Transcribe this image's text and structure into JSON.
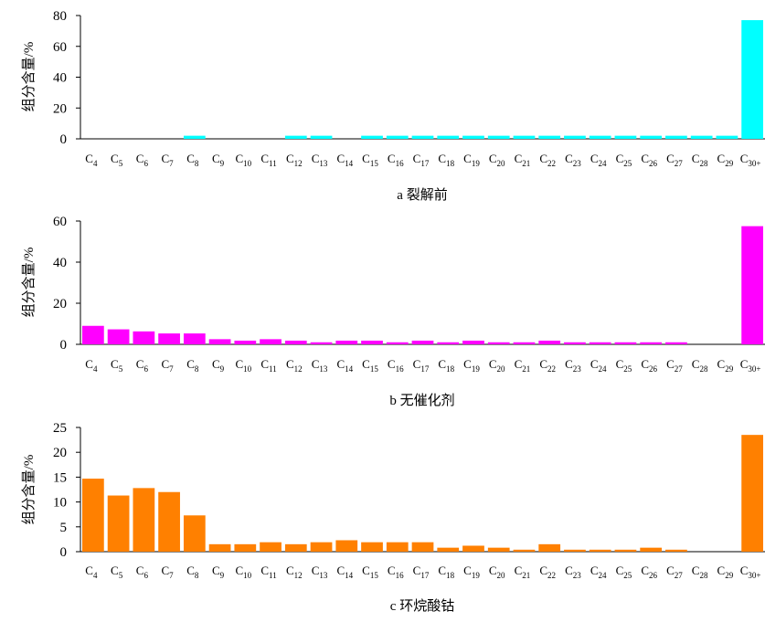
{
  "chart_data": [
    {
      "type": "bar",
      "caption": "a 裂解前",
      "ylabel": "组分含量/%",
      "ylim": [
        0,
        80
      ],
      "yticks": [
        0,
        20,
        40,
        60,
        80
      ],
      "color": "#00FFFF",
      "categories": [
        "C4",
        "C5",
        "C6",
        "C7",
        "C8",
        "C9",
        "C10",
        "C11",
        "C12",
        "C13",
        "C14",
        "C15",
        "C16",
        "C17",
        "C18",
        "C19",
        "C20",
        "C21",
        "C22",
        "C23",
        "C24",
        "C25",
        "C26",
        "C27",
        "C28",
        "C29",
        "C30+"
      ],
      "values": [
        0,
        0,
        0,
        0,
        2,
        0,
        0,
        0,
        2,
        2,
        0,
        2,
        2,
        2,
        2,
        2,
        2,
        2,
        2,
        2,
        2,
        2,
        2,
        2,
        2,
        2,
        77
      ]
    },
    {
      "type": "bar",
      "caption": "b 无催化剂",
      "ylabel": "组分含量/%",
      "ylim": [
        0,
        60
      ],
      "yticks": [
        0,
        20,
        40,
        60
      ],
      "color": "#FF00FF",
      "categories": [
        "C4",
        "C5",
        "C6",
        "C7",
        "C8",
        "C9",
        "C10",
        "C11",
        "C12",
        "C13",
        "C14",
        "C15",
        "C16",
        "C17",
        "C18",
        "C19",
        "C20",
        "C21",
        "C22",
        "C23",
        "C24",
        "C25",
        "C26",
        "C27",
        "C28",
        "C29",
        "C30+"
      ],
      "values": [
        9,
        7.3,
        6.3,
        5.3,
        5.3,
        2.5,
        1.8,
        2.5,
        1.8,
        1,
        1.8,
        1.8,
        1,
        1.8,
        1,
        1.8,
        1,
        1,
        1.8,
        1,
        1,
        1,
        1,
        1,
        0,
        0,
        57.5
      ]
    },
    {
      "type": "bar",
      "caption": "c 环烷酸钴",
      "ylabel": "组分含量/%",
      "ylim": [
        0,
        25
      ],
      "yticks": [
        0,
        5,
        10,
        15,
        20,
        25
      ],
      "color": "#FF8000",
      "categories": [
        "C4",
        "C5",
        "C6",
        "C7",
        "C8",
        "C9",
        "C10",
        "C11",
        "C12",
        "C13",
        "C14",
        "C15",
        "C16",
        "C17",
        "C18",
        "C19",
        "C20",
        "C21",
        "C22",
        "C23",
        "C24",
        "C25",
        "C26",
        "C27",
        "C28",
        "C29",
        "C30+"
      ],
      "values": [
        14.7,
        11.3,
        12.8,
        12,
        7.3,
        1.5,
        1.5,
        1.9,
        1.5,
        1.9,
        2.3,
        1.9,
        1.9,
        1.9,
        0.8,
        1.2,
        0.8,
        0.4,
        1.5,
        0.4,
        0.4,
        0.4,
        0.8,
        0.4,
        0,
        0,
        23.5
      ]
    }
  ]
}
